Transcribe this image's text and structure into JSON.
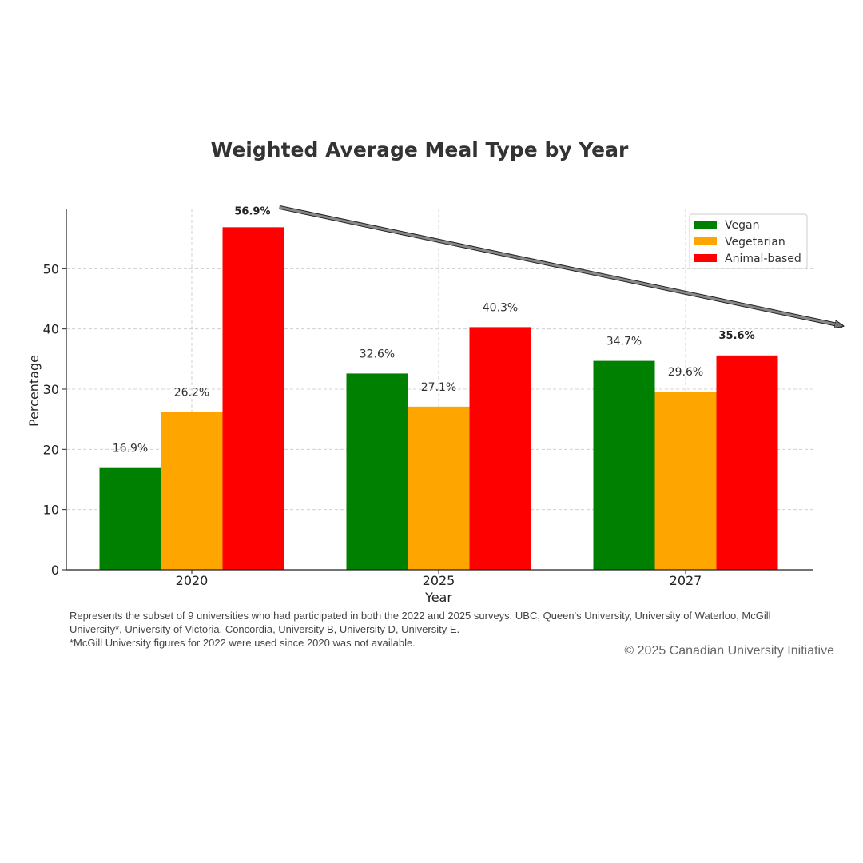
{
  "chart_data": {
    "type": "bar",
    "title": "Weighted Average Meal Type by Year",
    "xlabel": "Year",
    "ylabel": "Percentage",
    "categories": [
      "2020",
      "2025",
      "2027"
    ],
    "series": [
      {
        "name": "Vegan",
        "color": "#008000",
        "values": [
          16.9,
          32.6,
          34.7
        ],
        "labels": [
          "16.9%",
          "32.6%",
          "34.7%"
        ]
      },
      {
        "name": "Vegetarian",
        "color": "#FFA500",
        "values": [
          26.2,
          27.1,
          29.6
        ],
        "labels": [
          "26.2%",
          "27.1%",
          "29.6%"
        ]
      },
      {
        "name": "Animal-based",
        "color": "#FF0000",
        "values": [
          56.9,
          40.3,
          35.6
        ],
        "labels": [
          "56.9%",
          "40.3%",
          "35.6%"
        ]
      }
    ],
    "ylim": [
      0,
      60
    ],
    "yticks": [
      0,
      10,
      20,
      30,
      40,
      50
    ],
    "grid": true,
    "legend_position": "top-right",
    "annotation": {
      "type": "arrow",
      "from": "Animal-based 2020",
      "to": "Animal-based 2027"
    }
  },
  "footnote": {
    "line1": "Represents the subset of 9 universities who had participated in both the 2022 and 2025 surveys: UBC, Queen's University, University of Waterloo, McGill University*, University of Victoria, Concordia, University B, University D,  University E.",
    "line2": "*McGill University figures for 2022 were used since 2020 was not available."
  },
  "copyright": "© 2025 Canadian University Initiative"
}
